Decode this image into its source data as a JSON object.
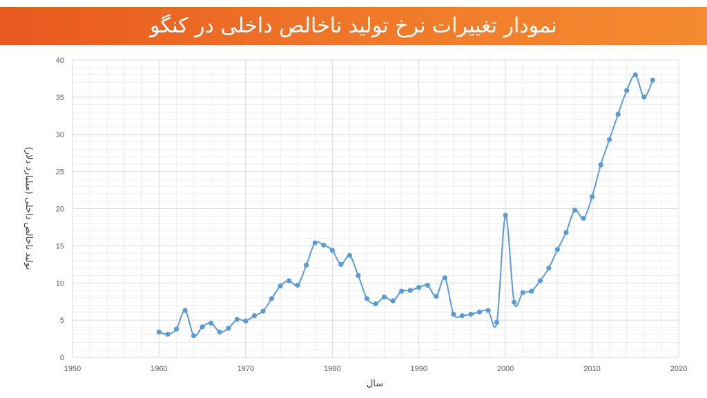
{
  "title": "نمودار تغییرات نرخ تولید ناخالص داخلی در کنگو",
  "colors": {
    "title_bar": "#ec6a25",
    "line": "#5b9bd5",
    "grid": "#d9d9d9",
    "minor_grid": "#eeeeee"
  },
  "chart_data": {
    "type": "line",
    "title": "نمودار تغییرات نرخ تولید ناخالص داخلی در کنگو",
    "xlabel": "سال",
    "ylabel": "تولید ناخالص داخلی (میلیارد دلار)",
    "xlim": [
      1950,
      2020
    ],
    "ylim": [
      0,
      40
    ],
    "xticks": [
      1950,
      1960,
      1970,
      1980,
      1990,
      2000,
      2010,
      2020
    ],
    "yticks": [
      0,
      5,
      10,
      15,
      20,
      25,
      30,
      35,
      40
    ],
    "grid": true,
    "legend": "none",
    "series": [
      {
        "x": [
          1960,
          1961,
          1962,
          1963,
          1964,
          1965,
          1966,
          1967,
          1968,
          1969,
          1970,
          1971,
          1972,
          1973,
          1974,
          1975,
          1976,
          1977,
          1978,
          1979,
          1980,
          1981,
          1982,
          1983,
          1984,
          1985,
          1986,
          1987,
          1988,
          1989,
          1990,
          1991,
          1992,
          1993,
          1994,
          1995,
          1996,
          1997,
          1998,
          1999,
          2000,
          2001,
          2002,
          2003,
          2004,
          2005,
          2006,
          2007,
          2008,
          2009,
          2010,
          2011,
          2012,
          2013,
          2014,
          2015,
          2016,
          2017
        ],
        "y": [
          3.4,
          3.1,
          3.8,
          6.3,
          2.9,
          4.1,
          4.6,
          3.4,
          3.9,
          5.1,
          4.9,
          5.6,
          6.2,
          7.9,
          9.6,
          10.3,
          9.7,
          12.4,
          15.4,
          15.1,
          14.4,
          12.5,
          13.7,
          11.0,
          7.9,
          7.2,
          8.1,
          7.6,
          8.9,
          9.0,
          9.4,
          9.7,
          8.2,
          10.7,
          5.8,
          5.6,
          5.8,
          6.1,
          6.3,
          4.7,
          19.1,
          7.4,
          8.7,
          8.9,
          10.3,
          12.0,
          14.5,
          16.8,
          19.8,
          18.7,
          21.6,
          25.9,
          29.3,
          32.7,
          35.9,
          38.0,
          35.0,
          37.3
        ]
      }
    ]
  }
}
